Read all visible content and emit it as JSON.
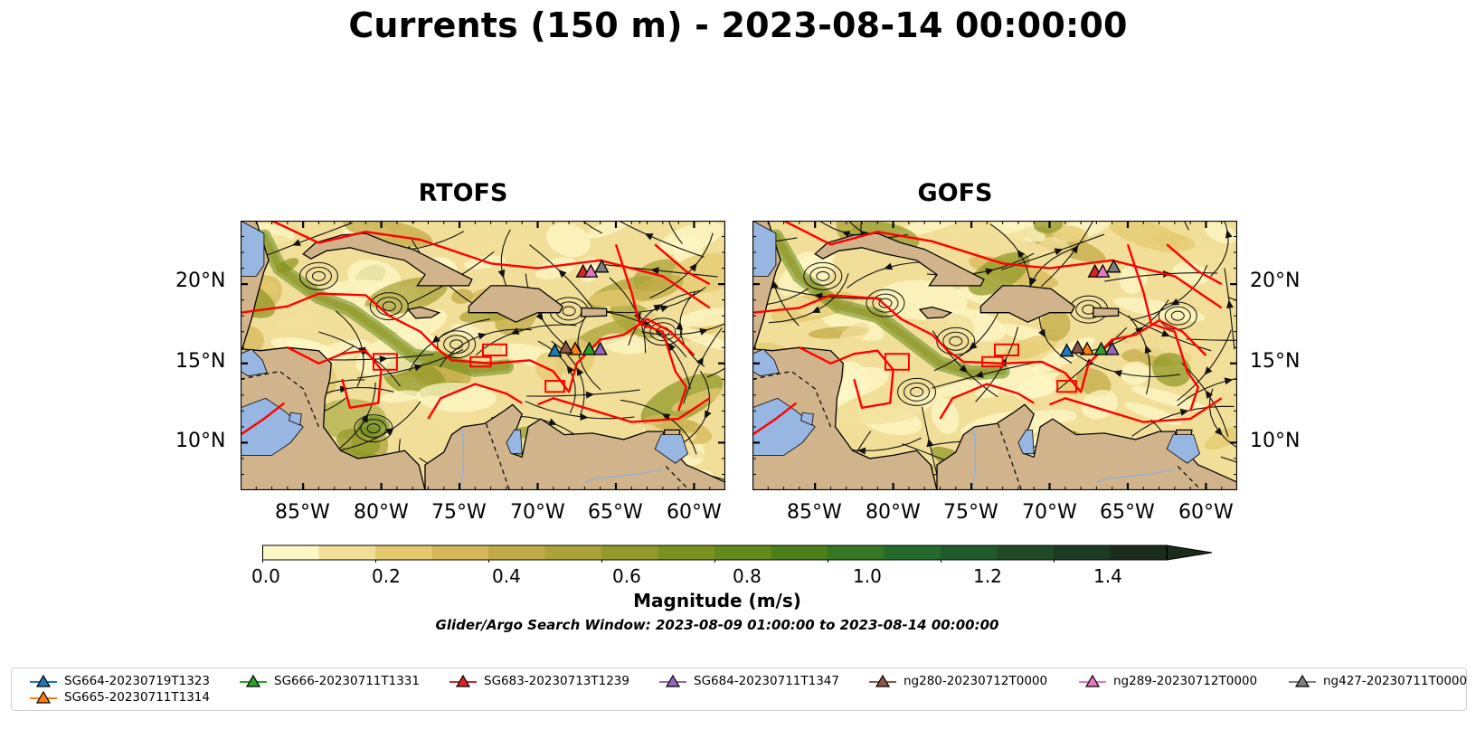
{
  "title": "Currents (150 m) - 2023-08-14 00:00:00",
  "panels": [
    {
      "title": "RTOFS"
    },
    {
      "title": "GOFS"
    }
  ],
  "colorbar": {
    "label": "Magnitude (m/s)",
    "ticks": [
      "0.0",
      "0.2",
      "0.4",
      "0.6",
      "0.8",
      "1.0",
      "1.2",
      "1.4"
    ],
    "levels": 16,
    "extend": "max",
    "colors": [
      "#fdf7c6",
      "#f1df99",
      "#e4c96f",
      "#d5b85a",
      "#c1ab47",
      "#aba338",
      "#939a29",
      "#7b911e",
      "#628919",
      "#4a8019",
      "#357621",
      "#236a2b",
      "#1f5a2c",
      "#1f4a28",
      "#1d3a23",
      "#1b2c1c"
    ]
  },
  "search_window": "Glider/Argo Search Window: 2023-08-09 01:00:00 to 2023-08-14 00:00:00",
  "map": {
    "lon_range": [
      -89,
      -58
    ],
    "lat_range": [
      7,
      24
    ],
    "xticks": [
      "85°W",
      "80°W",
      "75°W",
      "70°W",
      "65°W",
      "60°W"
    ],
    "yticks": [
      "20°N",
      "15°N",
      "10°N"
    ],
    "land_color": "#d1b48c",
    "water_color": "#97b6e1",
    "eez_color": "#ff0000"
  },
  "chart_data": {
    "type": "map",
    "variable": "Currents (150 m)",
    "time": "2023-08-14 00:00:00",
    "models": [
      "RTOFS",
      "GOFS"
    ],
    "vmin": 0.0,
    "vmax": 1.5,
    "gliders": [
      {
        "name": "SG664-20230719T1323",
        "color": "#1f77b4",
        "lon": -68.9,
        "lat": 15.8
      },
      {
        "name": "SG665-20230711T1314",
        "color": "#ff7f0e",
        "lon": -67.6,
        "lat": 15.9
      },
      {
        "name": "SG666-20230711T1331",
        "color": "#2ca02c",
        "lon": -66.7,
        "lat": 15.9
      },
      {
        "name": "SG683-20230713T1239",
        "color": "#d62728",
        "lon": -67.1,
        "lat": 20.8
      },
      {
        "name": "SG684-20230711T1347",
        "color": "#9467bd",
        "lon": -66.0,
        "lat": 15.9
      },
      {
        "name": "ng280-20230712T0000",
        "color": "#8c564b",
        "lon": -68.2,
        "lat": 16.0
      },
      {
        "name": "ng289-20230712T0000",
        "color": "#e377c2",
        "lon": -66.6,
        "lat": 20.8
      },
      {
        "name": "ng427-20230711T0000",
        "color": "#7f7f7f",
        "lon": -65.9,
        "lat": 21.1
      }
    ]
  },
  "legend": [
    {
      "label": "SG664-20230719T1323",
      "color": "#1f77b4"
    },
    {
      "label": "SG665-20230711T1314",
      "color": "#ff7f0e"
    },
    {
      "label": "SG666-20230711T1331",
      "color": "#2ca02c"
    },
    {
      "label": "SG683-20230713T1239",
      "color": "#d62728"
    },
    {
      "label": "SG684-20230711T1347",
      "color": "#9467bd"
    },
    {
      "label": "ng280-20230712T0000",
      "color": "#8c564b"
    },
    {
      "label": "ng289-20230712T0000",
      "color": "#e377c2"
    },
    {
      "label": "ng427-20230711T0000",
      "color": "#7f7f7f"
    }
  ]
}
